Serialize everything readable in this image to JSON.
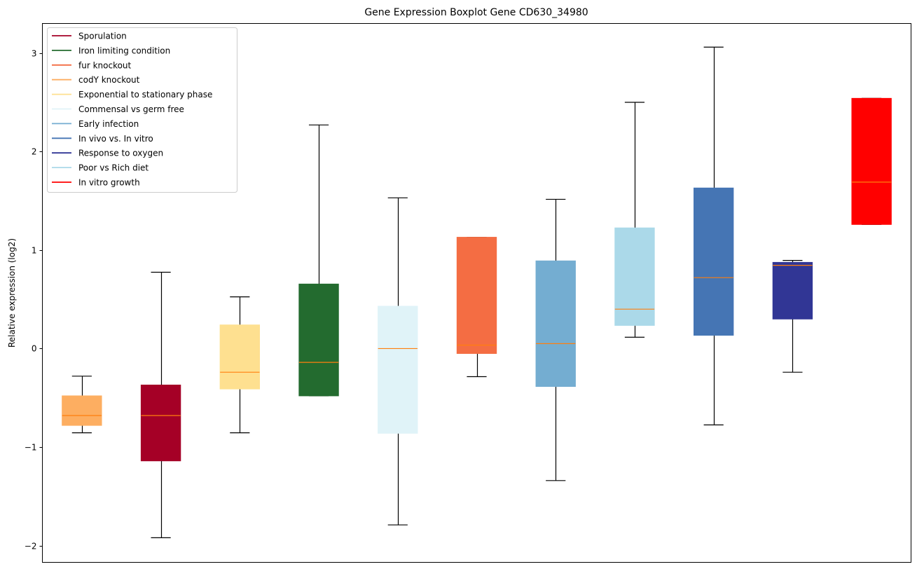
{
  "chart_data": {
    "type": "boxplot",
    "title": "Gene Expression Boxplot Gene CD630_34980",
    "xlabel": "",
    "ylabel": "Relative expression (log2)",
    "ylim": [
      -2.17,
      3.3
    ],
    "xlim": [
      0.5,
      11.5
    ],
    "yticks": [
      -2,
      -1,
      0,
      1,
      2,
      3
    ],
    "ytick_labels": [
      "−2",
      "−1",
      "0",
      "1",
      "2",
      "3"
    ],
    "grid": false,
    "legend_position": "top-left",
    "median_color": "#ff7f0e",
    "legend": [
      {
        "label": "Sporulation",
        "color": "#a50026"
      },
      {
        "label": "Iron limiting condition",
        "color": "#236b2f"
      },
      {
        "label": "fur knockout",
        "color": "#f46d43"
      },
      {
        "label": "codY knockout",
        "color": "#fdae61"
      },
      {
        "label": "Exponential to stationary phase",
        "color": "#fee090"
      },
      {
        "label": "Commensal vs germ free",
        "color": "#e0f3f8"
      },
      {
        "label": "Early infection",
        "color": "#74add1"
      },
      {
        "label": "In vivo vs. In vitro",
        "color": "#4575b4"
      },
      {
        "label": "Response to oxygen",
        "color": "#313695"
      },
      {
        "label": "Poor vs Rich diet",
        "color": "#abd9e9"
      },
      {
        "label": "In vitro growth",
        "color": "#ff0000"
      }
    ],
    "boxes": [
      {
        "group": "codY knockout",
        "color": "#fdae61",
        "whisker_low": -0.855,
        "q1": -0.78,
        "median": -0.68,
        "q3": -0.48,
        "whisker_high": -0.28
      },
      {
        "group": "Sporulation",
        "color": "#a50026",
        "whisker_low": -1.92,
        "q1": -1.14,
        "median": -0.68,
        "q3": -0.37,
        "whisker_high": 0.775
      },
      {
        "group": "Exponential to stationary phase",
        "color": "#fee090",
        "whisker_low": -0.855,
        "q1": -0.41,
        "median": -0.24,
        "q3": 0.24,
        "whisker_high": 0.525
      },
      {
        "group": "Iron limiting condition",
        "color": "#236b2f",
        "whisker_low": -0.48,
        "q1": -0.48,
        "median": -0.14,
        "q3": 0.655,
        "whisker_high": 2.27
      },
      {
        "group": "Commensal vs germ free",
        "color": "#e0f3f8",
        "whisker_low": -1.79,
        "q1": -0.86,
        "median": 0.0,
        "q3": 0.43,
        "whisker_high": 1.53
      },
      {
        "group": "fur knockout",
        "color": "#f46d43",
        "whisker_low": -0.285,
        "q1": -0.05,
        "median": 0.035,
        "q3": 1.13,
        "whisker_high": 1.13
      },
      {
        "group": "Early infection",
        "color": "#74add1",
        "whisker_low": -1.34,
        "q1": -0.385,
        "median": 0.05,
        "q3": 0.89,
        "whisker_high": 1.515
      },
      {
        "group": "Poor vs Rich diet",
        "color": "#abd9e9",
        "whisker_low": 0.115,
        "q1": 0.235,
        "median": 0.4,
        "q3": 1.225,
        "whisker_high": 2.5
      },
      {
        "group": "In vivo vs. In vitro",
        "color": "#4575b4",
        "whisker_low": -0.775,
        "q1": 0.135,
        "median": 0.72,
        "q3": 1.63,
        "whisker_high": 3.06
      },
      {
        "group": "Response to oxygen",
        "color": "#313695",
        "whisker_low": -0.24,
        "q1": 0.3,
        "median": 0.845,
        "q3": 0.875,
        "whisker_high": 0.895
      },
      {
        "group": "In vitro growth",
        "color": "#ff0000",
        "whisker_low": 1.26,
        "q1": 1.26,
        "median": 1.69,
        "q3": 2.54,
        "whisker_high": 2.54
      }
    ]
  }
}
